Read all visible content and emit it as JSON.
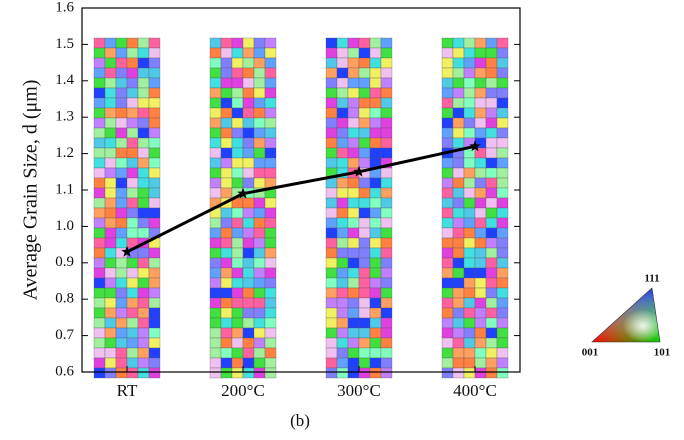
{
  "chart_data": {
    "type": "line",
    "y_label": "Average Grain Size, d (μm)",
    "x_label": "(b)",
    "categories": [
      "RT",
      "200°C",
      "300°C",
      "400°C"
    ],
    "values": [
      0.93,
      1.09,
      1.15,
      1.22
    ],
    "color": "#000000",
    "ylim": [
      0.6,
      1.6
    ],
    "yticks": [
      0.6,
      0.7,
      0.8,
      0.9,
      {
        "value": 1,
        "label": "1.0"
      },
      1.1,
      1.2,
      1.3,
      1.4,
      1.5,
      1.6
    ],
    "inset_legend": {
      "top": "111",
      "left": "001",
      "right": "101"
    }
  }
}
